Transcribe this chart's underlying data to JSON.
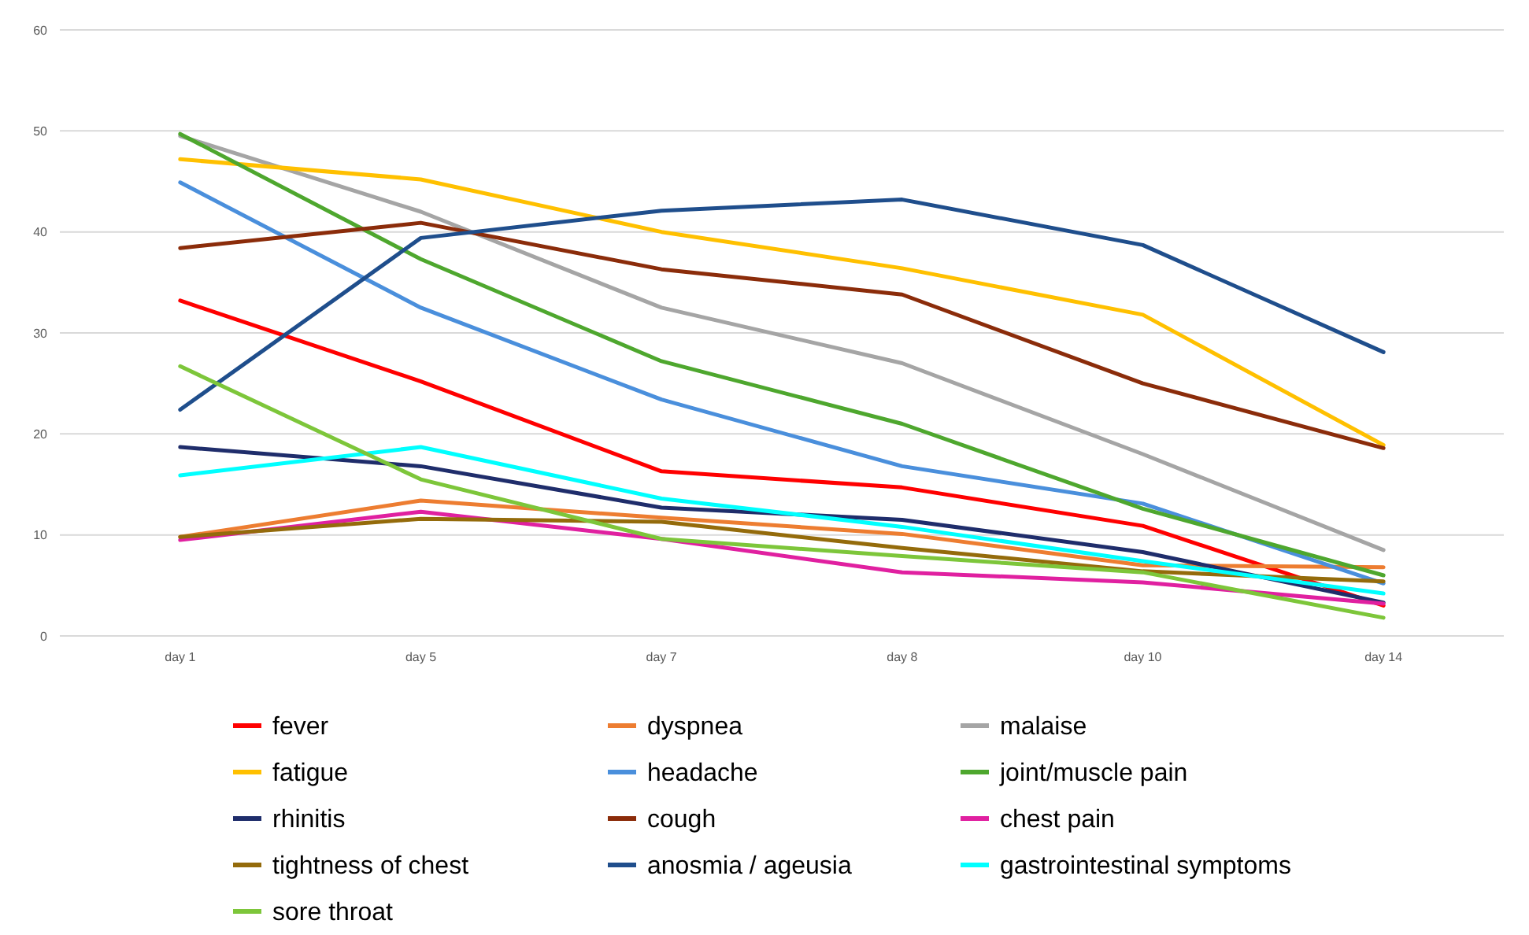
{
  "chart_data": {
    "type": "line",
    "categories": [
      "day 1",
      "day 5",
      "day 7",
      "day 8",
      "day 10",
      "day 14"
    ],
    "ylim": [
      0,
      60
    ],
    "yticks": [
      0,
      10,
      20,
      30,
      40,
      50,
      60
    ],
    "grid": "y",
    "legend": "bottom",
    "marker": "none",
    "line_style": "solid",
    "series": [
      {
        "name": "fever",
        "color": "#ff0000",
        "values": [
          33.2,
          25.2,
          16.3,
          14.7,
          10.9,
          3.0
        ]
      },
      {
        "name": "dyspnea",
        "color": "#ed7d31",
        "values": [
          9.8,
          13.4,
          11.7,
          10.1,
          7.0,
          6.8
        ]
      },
      {
        "name": "malaise",
        "color": "#a5a5a5",
        "values": [
          49.5,
          42.0,
          32.5,
          27.0,
          18.0,
          8.5
        ]
      },
      {
        "name": "fatigue",
        "color": "#ffc000",
        "values": [
          47.2,
          45.2,
          40.0,
          36.4,
          31.8,
          18.9
        ]
      },
      {
        "name": "headache",
        "color": "#4a8fdc",
        "values": [
          44.9,
          32.5,
          23.4,
          16.8,
          13.1,
          5.2
        ]
      },
      {
        "name": "joint/muscle pain",
        "color": "#4ea72e",
        "values": [
          49.7,
          37.3,
          27.2,
          21.0,
          12.6,
          6.0
        ]
      },
      {
        "name": "rhinitis",
        "color": "#1f2d6b",
        "values": [
          18.7,
          16.8,
          12.7,
          11.5,
          8.3,
          3.3
        ]
      },
      {
        "name": "cough",
        "color": "#8b2c0a",
        "values": [
          38.4,
          40.9,
          36.3,
          33.8,
          25.0,
          18.6
        ]
      },
      {
        "name": "chest pain",
        "color": "#e020a0",
        "values": [
          9.5,
          12.3,
          9.6,
          6.3,
          5.3,
          3.2
        ]
      },
      {
        "name": "tightness of chest",
        "color": "#946b0b",
        "values": [
          9.8,
          11.6,
          11.3,
          8.7,
          6.4,
          5.4
        ]
      },
      {
        "name": "anosmia / ageusia",
        "color": "#1f4e8c",
        "values": [
          22.4,
          39.4,
          42.1,
          43.2,
          38.7,
          28.1
        ]
      },
      {
        "name": "gastrointestinal symptoms",
        "color": "#00ffff",
        "values": [
          15.9,
          18.7,
          13.6,
          10.8,
          7.4,
          4.2
        ]
      },
      {
        "name": "sore throat",
        "color": "#7dc63a",
        "values": [
          26.7,
          15.5,
          9.6,
          7.9,
          6.3,
          1.8
        ]
      }
    ]
  }
}
